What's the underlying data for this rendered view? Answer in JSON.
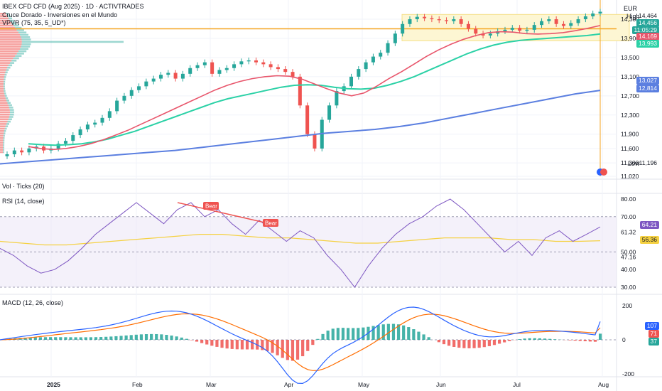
{
  "header": {
    "title": "IBEX CFD CFD (Aug 2025) · 1D · ACTIVTRADES",
    "indicator_1": "Cruce Dorado - Inversiones en el Mundo",
    "indicator_2": "VPVR (75, 35, 5_UD*)",
    "currency": "EUR",
    "high_label": "High",
    "low_label": "Low"
  },
  "price_tags": {
    "high": "14,464",
    "last": "14,456",
    "countdown": "11:05:29",
    "ma_fast": "14,169",
    "ma_slow": "13,993",
    "ma_long_a": "13,027",
    "ma_long_b": "12,814",
    "low": "11,196"
  },
  "panes": {
    "vol_title": "Vol · Ticks (20)",
    "rsi_title": "RSI (14, close)",
    "macd_title": "MACD (12, 26, close)",
    "rsi_value": "64.21",
    "rsi_ma_value": "56.36",
    "macd_value": "107",
    "signal_value": "71",
    "hist_value": "37",
    "bear_label": "Bear"
  },
  "colors": {
    "up": "#26a69a",
    "down": "#ef5350",
    "ma_fast": "#e8556b",
    "ma_slow": "#2bd1a6",
    "ma_long": "#5b7fe0",
    "rsi": "#7e57c2",
    "rsi_ma": "#f5d142",
    "macd": "#2962ff",
    "signal": "#ff6d00",
    "orange_line": "#f5a623",
    "box": "#f5e08a"
  },
  "chart_data": [
    {
      "type": "candlestick",
      "title": "IBEX CFD CFD (Aug 2025) · 1D · ACTIVTRADES",
      "ylim": [
        11020,
        14464
      ],
      "y_ticks": [
        11020,
        11300,
        11600,
        11900,
        12300,
        12700,
        13100,
        13500,
        13900,
        14300
      ],
      "x_ticks": [
        "2025",
        "Feb",
        "Mar",
        "Apr",
        "May",
        "Jun",
        "Jul",
        "Aug"
      ],
      "ohlc_close_approx": [
        11480,
        11560,
        11520,
        11600,
        11640,
        11560,
        11600,
        11700,
        11760,
        11880,
        12000,
        12100,
        12140,
        12240,
        12380,
        12600,
        12700,
        12820,
        12900,
        13000,
        13060,
        13140,
        13180,
        13060,
        13160,
        13280,
        13340,
        13400,
        13160,
        13240,
        13280,
        13360,
        13420,
        13440,
        13400,
        13360,
        13300,
        13260,
        13200,
        13100,
        12500,
        11900,
        11600,
        12200,
        12500,
        12800,
        12900,
        13100,
        13260,
        13400,
        13520,
        13600,
        13800,
        14000,
        14200,
        14300,
        14350,
        14320,
        14300,
        14280,
        14260,
        14300,
        14200,
        14100,
        14000,
        13960,
        14000,
        14050,
        14080,
        14120,
        14060,
        14080,
        14180,
        14260,
        14300,
        14200,
        14160,
        14220,
        14300,
        14360,
        14420,
        14456
      ],
      "series": [
        {
          "name": "MA fast",
          "values_approx": [
            11640,
            11600,
            11580,
            11600,
            11640,
            11700,
            11780,
            11880,
            11980,
            12100,
            12220,
            12340,
            12460,
            12580,
            12700,
            12820,
            12920,
            13000,
            13060,
            13100,
            13120,
            13110,
            13050,
            12950,
            12850,
            12760,
            12700,
            12760,
            12900,
            13060,
            13200,
            13360,
            13520,
            13660,
            13780,
            13880,
            13960,
            14020,
            14040,
            14030,
            14000,
            13990,
            14000,
            14020,
            14060,
            14110,
            14169
          ]
        },
        {
          "name": "MA slow",
          "values_approx": [
            11700,
            11680,
            11670,
            11680,
            11700,
            11740,
            11800,
            11880,
            11960,
            12060,
            12160,
            12260,
            12360,
            12460,
            12560,
            12640,
            12700,
            12760,
            12820,
            12880,
            12920,
            12930,
            12920,
            12880,
            12850,
            12840,
            12860,
            12920,
            13000,
            13100,
            13220,
            13340,
            13460,
            13580,
            13680,
            13760,
            13820,
            13860,
            13880,
            13900,
            13920,
            13940,
            13960,
            13993
          ]
        },
        {
          "name": "MA long",
          "values_approx": [
            11280,
            11320,
            11360,
            11400,
            11440,
            11480,
            11520,
            11560,
            11620,
            11680,
            11740,
            11800,
            11860,
            11920,
            11960,
            12000,
            12060,
            12140,
            12240,
            12340,
            12440,
            12540,
            12640,
            12740,
            12814
          ]
        }
      ],
      "annotations": [
        "High 14,464",
        "Low 11,196"
      ]
    },
    {
      "type": "line",
      "title": "RSI (14, close)",
      "ylim": [
        30,
        80
      ],
      "y_ticks": [
        30,
        40,
        47.16,
        50,
        61.32,
        70,
        80
      ],
      "bands": [
        30,
        70
      ],
      "series": [
        {
          "name": "RSI",
          "values_approx": [
            52,
            48,
            42,
            38,
            40,
            45,
            52,
            60,
            66,
            72,
            78,
            72,
            66,
            74,
            78,
            70,
            74,
            66,
            60,
            68,
            62,
            56,
            62,
            58,
            48,
            40,
            30,
            42,
            52,
            60,
            66,
            70,
            76,
            80,
            74,
            66,
            58,
            50,
            56,
            48,
            58,
            62,
            56,
            60,
            64.21
          ]
        },
        {
          "name": "RSI MA",
          "values_approx": [
            56,
            55,
            54,
            54,
            55,
            56,
            57,
            58,
            59,
            60,
            60,
            59,
            58,
            58,
            57,
            56,
            55,
            55,
            56,
            57,
            58,
            58,
            58,
            57,
            57,
            56,
            56,
            56.36
          ]
        }
      ],
      "labels": [
        "Bear",
        "Bear"
      ]
    },
    {
      "type": "bar",
      "title": "MACD (12, 26, close)",
      "ylim": [
        -200,
        200
      ],
      "y_ticks": [
        -200,
        0,
        200
      ],
      "series": [
        {
          "name": "MACD",
          "value_last": 107
        },
        {
          "name": "Signal",
          "value_last": 71
        },
        {
          "name": "Histogram",
          "value_last": 37
        }
      ]
    }
  ]
}
